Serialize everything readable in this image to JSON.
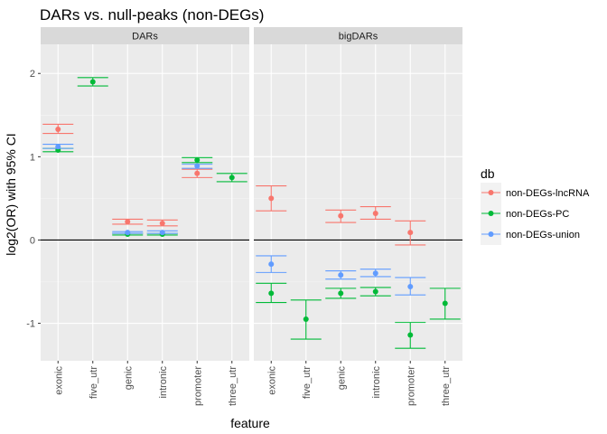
{
  "chart_data": {
    "type": "errorbar",
    "title": "DARs vs. null-peaks (non-DEGs)",
    "xlabel": "feature",
    "ylabel": "log2(OR) with 95% CI",
    "ylim": [
      -1.45,
      2.35
    ],
    "y_ticks": [
      2,
      1,
      0,
      -1
    ],
    "y_tick_labels": [
      "2",
      "1",
      "0",
      "-1"
    ],
    "reference_line": 0,
    "grid": true,
    "categories": [
      "exonic",
      "five_utr",
      "genic",
      "intronic",
      "promoter",
      "three_utr"
    ],
    "legend": {
      "title": "db",
      "placement": "right"
    },
    "series_meta": [
      {
        "name": "non-DEGs-lncRNA",
        "color": "#F8766D"
      },
      {
        "name": "non-DEGs-PC",
        "color": "#00BA38"
      },
      {
        "name": "non-DEGs-union",
        "color": "#619CFF"
      }
    ],
    "panels": [
      {
        "name": "DARs",
        "series": [
          {
            "name": "non-DEGs-lncRNA",
            "points": [
              {
                "x": "exonic",
                "y": 1.33,
                "low": 1.28,
                "high": 1.39
              },
              {
                "x": "genic",
                "y": 0.22,
                "low": 0.19,
                "high": 0.25
              },
              {
                "x": "intronic",
                "y": 0.2,
                "low": 0.17,
                "high": 0.24
              },
              {
                "x": "promoter",
                "y": 0.8,
                "low": 0.75,
                "high": 0.85
              }
            ]
          },
          {
            "name": "non-DEGs-PC",
            "points": [
              {
                "x": "exonic",
                "y": 1.08,
                "low": 1.06,
                "high": 1.1
              },
              {
                "x": "five_utr",
                "y": 1.9,
                "low": 1.85,
                "high": 1.95
              },
              {
                "x": "genic",
                "y": 0.07,
                "low": 0.06,
                "high": 0.08
              },
              {
                "x": "intronic",
                "y": 0.07,
                "low": 0.06,
                "high": 0.08
              },
              {
                "x": "promoter",
                "y": 0.96,
                "low": 0.93,
                "high": 0.99
              },
              {
                "x": "three_utr",
                "y": 0.75,
                "low": 0.7,
                "high": 0.8
              }
            ]
          },
          {
            "name": "non-DEGs-union",
            "points": [
              {
                "x": "exonic",
                "y": 1.12,
                "low": 1.1,
                "high": 1.15
              },
              {
                "x": "genic",
                "y": 0.09,
                "low": 0.08,
                "high": 0.1
              },
              {
                "x": "intronic",
                "y": 0.09,
                "low": 0.08,
                "high": 0.11
              },
              {
                "x": "promoter",
                "y": 0.89,
                "low": 0.86,
                "high": 0.91
              }
            ]
          }
        ]
      },
      {
        "name": "bigDARs",
        "series": [
          {
            "name": "non-DEGs-lncRNA",
            "points": [
              {
                "x": "exonic",
                "y": 0.5,
                "low": 0.35,
                "high": 0.65
              },
              {
                "x": "genic",
                "y": 0.29,
                "low": 0.21,
                "high": 0.36
              },
              {
                "x": "intronic",
                "y": 0.32,
                "low": 0.25,
                "high": 0.4
              },
              {
                "x": "promoter",
                "y": 0.09,
                "low": -0.06,
                "high": 0.23
              }
            ]
          },
          {
            "name": "non-DEGs-PC",
            "points": [
              {
                "x": "exonic",
                "y": -0.64,
                "low": -0.75,
                "high": -0.52
              },
              {
                "x": "five_utr",
                "y": -0.95,
                "low": -1.19,
                "high": -0.72
              },
              {
                "x": "genic",
                "y": -0.64,
                "low": -0.7,
                "high": -0.58
              },
              {
                "x": "intronic",
                "y": -0.62,
                "low": -0.67,
                "high": -0.57
              },
              {
                "x": "promoter",
                "y": -1.14,
                "low": -1.3,
                "high": -0.99
              },
              {
                "x": "three_utr",
                "y": -0.76,
                "low": -0.95,
                "high": -0.58
              }
            ]
          },
          {
            "name": "non-DEGs-union",
            "points": [
              {
                "x": "exonic",
                "y": -0.29,
                "low": -0.39,
                "high": -0.19
              },
              {
                "x": "genic",
                "y": -0.42,
                "low": -0.47,
                "high": -0.37
              },
              {
                "x": "intronic",
                "y": -0.4,
                "low": -0.44,
                "high": -0.35
              },
              {
                "x": "promoter",
                "y": -0.56,
                "low": -0.66,
                "high": -0.45
              }
            ]
          }
        ]
      }
    ]
  }
}
